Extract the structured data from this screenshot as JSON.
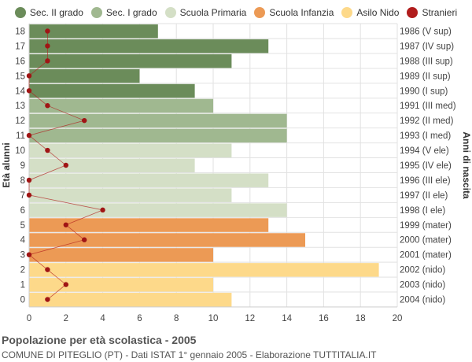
{
  "chart_data": {
    "type": "bar",
    "orientation": "horizontal",
    "xlim": [
      0,
      20
    ],
    "x_ticks": [
      "0",
      "2",
      "4",
      "6",
      "8",
      "10",
      "12",
      "14",
      "16",
      "18",
      "20"
    ],
    "ylabel_left": "Età alunni",
    "ylabel_right": "Anni di nascita",
    "legend": [
      {
        "name": "Sec. II grado",
        "color": "#6b8c5a"
      },
      {
        "name": "Sec. I grado",
        "color": "#a0b890"
      },
      {
        "name": "Scuola Primaria",
        "color": "#d4dfc6"
      },
      {
        "name": "Scuola Infanzia",
        "color": "#ec9a55"
      },
      {
        "name": "Asilo Nido",
        "color": "#fdd98a"
      },
      {
        "name": "Stranieri",
        "color": "#b11d1d"
      }
    ],
    "rows": [
      {
        "age": "18",
        "birth": "1986 (V sup)",
        "value": 7,
        "stranieri": 1,
        "level": "Sec. II grado"
      },
      {
        "age": "17",
        "birth": "1987 (IV sup)",
        "value": 13,
        "stranieri": 1,
        "level": "Sec. II grado"
      },
      {
        "age": "16",
        "birth": "1988 (III sup)",
        "value": 11,
        "stranieri": 1,
        "level": "Sec. II grado"
      },
      {
        "age": "15",
        "birth": "1989 (II sup)",
        "value": 6,
        "stranieri": 0,
        "level": "Sec. II grado"
      },
      {
        "age": "14",
        "birth": "1990 (I sup)",
        "value": 9,
        "stranieri": 0,
        "level": "Sec. II grado"
      },
      {
        "age": "13",
        "birth": "1991 (III med)",
        "value": 10,
        "stranieri": 1,
        "level": "Sec. I grado"
      },
      {
        "age": "12",
        "birth": "1992 (II med)",
        "value": 14,
        "stranieri": 3,
        "level": "Sec. I grado"
      },
      {
        "age": "11",
        "birth": "1993 (I med)",
        "value": 14,
        "stranieri": 0,
        "level": "Sec. I grado"
      },
      {
        "age": "10",
        "birth": "1994 (V ele)",
        "value": 11,
        "stranieri": 1,
        "level": "Scuola Primaria"
      },
      {
        "age": "9",
        "birth": "1995 (IV ele)",
        "value": 9,
        "stranieri": 2,
        "level": "Scuola Primaria"
      },
      {
        "age": "8",
        "birth": "1996 (III ele)",
        "value": 13,
        "stranieri": 0,
        "level": "Scuola Primaria"
      },
      {
        "age": "7",
        "birth": "1997 (II ele)",
        "value": 11,
        "stranieri": 0,
        "level": "Scuola Primaria"
      },
      {
        "age": "6",
        "birth": "1998 (I ele)",
        "value": 14,
        "stranieri": 4,
        "level": "Scuola Primaria"
      },
      {
        "age": "5",
        "birth": "1999 (mater)",
        "value": 13,
        "stranieri": 2,
        "level": "Scuola Infanzia"
      },
      {
        "age": "4",
        "birth": "2000 (mater)",
        "value": 15,
        "stranieri": 3,
        "level": "Scuola Infanzia"
      },
      {
        "age": "3",
        "birth": "2001 (mater)",
        "value": 10,
        "stranieri": 0,
        "level": "Scuola Infanzia"
      },
      {
        "age": "2",
        "birth": "2002 (nido)",
        "value": 19,
        "stranieri": 1,
        "level": "Asilo Nido"
      },
      {
        "age": "1",
        "birth": "2003 (nido)",
        "value": 10,
        "stranieri": 2,
        "level": "Asilo Nido"
      },
      {
        "age": "0",
        "birth": "2004 (nido)",
        "value": 11,
        "stranieri": 1,
        "level": "Asilo Nido"
      }
    ],
    "title": "Popolazione per età scolastica - 2005",
    "subtitle": "COMUNE DI PITEGLIO (PT) - Dati ISTAT 1° gennaio 2005 - Elaborazione TUTTITALIA.IT",
    "grid": true
  }
}
